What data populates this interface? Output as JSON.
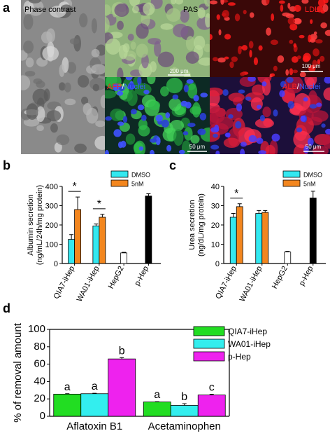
{
  "panel_letters": {
    "a": "a",
    "b": "b",
    "c": "c",
    "d": "d"
  },
  "micrographs": {
    "phase": {
      "label": "Phase contrast",
      "bg": "#8a8a8a"
    },
    "pas": {
      "label": "PAS",
      "scale": "200 μm",
      "bg": "#8fb37a"
    },
    "ldl": {
      "label": "LDL",
      "scale": "100 μm",
      "bg": "#3a0808"
    },
    "afp": {
      "label_marker": "AFP",
      "label_sep": "/",
      "label_nuclei": "Nuclei",
      "scale": "50 μm",
      "bg": "#0d2a24"
    },
    "alb": {
      "label_marker": "ALB",
      "label_sep": "/",
      "label_nuclei": "Nuclei",
      "scale": "50 μm",
      "bg": "#1c0f3a"
    }
  },
  "colors": {
    "dmso": "#33e8f0",
    "nm5": "#f3861e",
    "hepg2": "#ffffff",
    "phep": "#000000",
    "green": "#22dd22",
    "cyan": "#33eeee",
    "magenta": "#ee22ee",
    "marker_red": "#ff2020",
    "nuclei_blue": "#3a5bff"
  },
  "chart_data": [
    {
      "panel": "b",
      "type": "bar",
      "ylabel": "Albumin secretion\n(ng/mL/24h/mg protein)",
      "ylim": [
        0,
        400
      ],
      "yticks": [
        0,
        100,
        200,
        300,
        400
      ],
      "categories": [
        "QIA7-iHep",
        "WA01-iHep",
        "HepG2",
        "p-Hep"
      ],
      "series": [
        {
          "name": "DMSO",
          "values": [
            125,
            195,
            null,
            null
          ],
          "errors": [
            25,
            10,
            null,
            null
          ]
        },
        {
          "name": "5nM",
          "values": [
            280,
            240,
            null,
            null
          ],
          "errors": [
            65,
            15,
            null,
            null
          ]
        }
      ],
      "references": [
        {
          "category": "HepG2",
          "value": 55,
          "error": 3,
          "fill": "white"
        },
        {
          "category": "p-Hep",
          "value": 350,
          "error": 12,
          "fill": "black"
        }
      ],
      "significance": [
        {
          "category": "QIA7-iHep",
          "label": "*"
        },
        {
          "category": "WA01-iHep",
          "label": "*"
        }
      ],
      "legend": "top-right"
    },
    {
      "panel": "c",
      "type": "bar",
      "ylabel": "Urea secretion\n(ng/dL/mg protein)",
      "ylim": [
        0,
        40
      ],
      "yticks": [
        0,
        10,
        20,
        30,
        40
      ],
      "categories": [
        "QIA7-iHep",
        "WA01-iHep",
        "HepG2",
        "p-Hep"
      ],
      "series": [
        {
          "name": "DMSO",
          "values": [
            24,
            26,
            null,
            null
          ],
          "errors": [
            2,
            1.5,
            null,
            null
          ]
        },
        {
          "name": "5nM",
          "values": [
            29.5,
            26.5,
            null,
            null
          ],
          "errors": [
            1.5,
            1,
            null,
            null
          ]
        }
      ],
      "references": [
        {
          "category": "HepG2",
          "value": 6,
          "error": 0.3,
          "fill": "white"
        },
        {
          "category": "p-Hep",
          "value": 34,
          "error": 3.5,
          "fill": "black"
        }
      ],
      "significance": [
        {
          "category": "QIA7-iHep",
          "label": "*"
        }
      ],
      "legend": "top-right"
    },
    {
      "panel": "d",
      "type": "bar",
      "ylabel": "% of removal amount",
      "ylim": [
        0,
        100
      ],
      "yticks": [
        0,
        20,
        40,
        60,
        80,
        100
      ],
      "categories": [
        "Aflatoxin B1",
        "Acetaminophen"
      ],
      "series": [
        {
          "name": "QIA7-iHep",
          "values": [
            25.5,
            16.5
          ],
          "errors": [
            0.5,
            0.3
          ],
          "letters": [
            "a",
            "a"
          ]
        },
        {
          "name": "WA01-iHep",
          "values": [
            26,
            12.5
          ],
          "errors": [
            0.5,
            2
          ],
          "letters": [
            "a",
            "b"
          ]
        },
        {
          "name": "p-Hep",
          "values": [
            66,
            24.5
          ],
          "errors": [
            1.5,
            0.8
          ],
          "letters": [
            "b",
            "c"
          ]
        }
      ],
      "legend": "top-right"
    }
  ]
}
